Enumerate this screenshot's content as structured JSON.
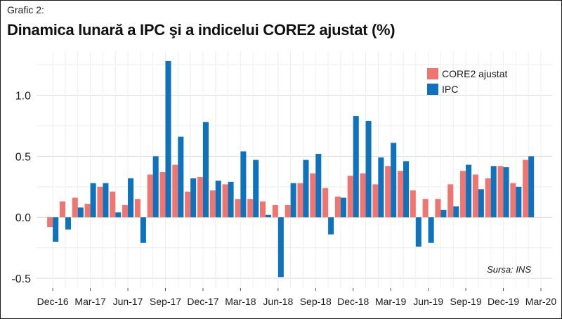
{
  "header": {
    "kicker": "Grafic 2:",
    "title": "Dinamica lunară a IPC şi a indicelui CORE2 ajustat (%)"
  },
  "source": "Sursa: INS",
  "chart_data": {
    "type": "bar",
    "categories": [
      "Dec-16",
      "Jan-17",
      "Feb-17",
      "Mar-17",
      "Apr-17",
      "May-17",
      "Jun-17",
      "Jul-17",
      "Aug-17",
      "Sep-17",
      "Oct-17",
      "Nov-17",
      "Dec-17",
      "Jan-18",
      "Feb-18",
      "Mar-18",
      "Apr-18",
      "May-18",
      "Jun-18",
      "Jul-18",
      "Aug-18",
      "Sep-18",
      "Oct-18",
      "Nov-18",
      "Dec-18",
      "Jan-19",
      "Feb-19",
      "Mar-19",
      "Apr-19",
      "May-19",
      "Jun-19",
      "Jul-19",
      "Aug-19",
      "Sep-19",
      "Oct-19",
      "Nov-19",
      "Dec-19",
      "Jan-20",
      "Feb-20",
      "Mar-20"
    ],
    "xtick_labels": [
      "Dec-16",
      "Mar-17",
      "Jun-17",
      "Sep-17",
      "Dec-17",
      "Mar-18",
      "Jun-18",
      "Sep-18",
      "Dec-18",
      "Mar-19",
      "Jun-19",
      "Sep-19",
      "Dec-19",
      "Mar-20"
    ],
    "series": [
      {
        "name": "CORE2 ajustat",
        "color": "#f07470",
        "values": [
          -0.08,
          0.13,
          0.16,
          0.11,
          0.25,
          0.21,
          0.1,
          0.15,
          0.35,
          0.37,
          0.43,
          0.21,
          0.33,
          0.22,
          0.27,
          0.15,
          0.15,
          0.13,
          0.1,
          0.1,
          0.28,
          0.36,
          0.24,
          0.17,
          0.34,
          0.36,
          0.27,
          0.42,
          0.38,
          0.22,
          0.15,
          0.15,
          0.27,
          0.38,
          0.35,
          0.32,
          0.42,
          0.28,
          0.47,
          null
        ]
      },
      {
        "name": "IPC",
        "color": "#0f72bd",
        "values": [
          -0.2,
          -0.1,
          0.08,
          0.28,
          0.28,
          0.04,
          0.32,
          -0.21,
          0.5,
          1.28,
          0.66,
          0.32,
          0.78,
          0.3,
          0.29,
          0.54,
          0.47,
          0.02,
          -0.49,
          0.28,
          0.47,
          0.52,
          -0.14,
          0.16,
          0.83,
          0.79,
          0.49,
          0.61,
          0.46,
          -0.24,
          -0.21,
          0.06,
          0.09,
          0.43,
          0.23,
          0.42,
          0.41,
          0.25,
          0.5,
          null
        ]
      }
    ],
    "yticks": [
      -0.5,
      0.0,
      0.5,
      1.0
    ],
    "ytick_labels": [
      "-0.5",
      "0.0",
      "0.5",
      "1.0"
    ],
    "ylim": [
      -0.58,
      1.36
    ],
    "grid": true,
    "legend_position": "top-right",
    "title": "Dinamica lunară a IPC şi a indicelui CORE2 ajustat (%)",
    "xlabel": "",
    "ylabel": ""
  }
}
